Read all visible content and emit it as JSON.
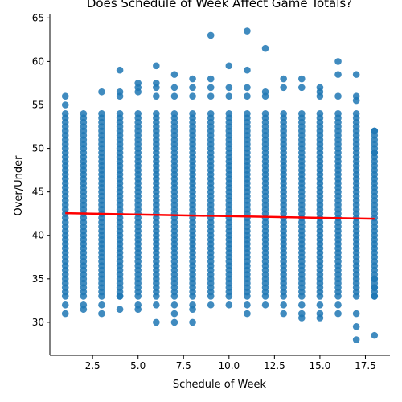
{
  "chart_data": {
    "type": "scatter",
    "title": "Does Schedule of Week Affect Game Totals?",
    "xlabel": "Schedule of Week",
    "ylabel": "Over/Under",
    "xlim": [
      0.15,
      18.85
    ],
    "ylim": [
      26.2,
      65.4
    ],
    "xticks": [
      2.5,
      5.0,
      7.5,
      10.0,
      12.5,
      15.0,
      17.5
    ],
    "xtick_labels": [
      "2.5",
      "5.0",
      "7.5",
      "10.0",
      "12.5",
      "15.0",
      "17.5"
    ],
    "yticks": [
      30,
      35,
      40,
      45,
      50,
      55,
      60,
      65
    ],
    "ytick_labels": [
      "30",
      "35",
      "40",
      "45",
      "50",
      "55",
      "60",
      "65"
    ],
    "grid": false,
    "point_color": "#1f77b4",
    "fit_color": "#ff0000",
    "series": [
      {
        "weeks": [
          1,
          2,
          3,
          4,
          5,
          6,
          7,
          8,
          9,
          10,
          11,
          12,
          13,
          14,
          15,
          16,
          17,
          18
        ],
        "min": [
          30,
          31.5,
          31,
          31.5,
          31.5,
          30,
          30,
          30,
          32,
          32,
          31,
          32,
          31,
          30.5,
          30.5,
          31,
          28,
          28.5
        ],
        "max": [
          56,
          55.5,
          56.5,
          59,
          57.5,
          59.5,
          58.5,
          58,
          63,
          59.5,
          63.5,
          61.5,
          58,
          58,
          57,
          60,
          58.5,
          52
        ],
        "outliers_low": [
          [
            1,
            31
          ],
          [
            1,
            32
          ],
          [
            2,
            31.5
          ],
          [
            2,
            32
          ],
          [
            3,
            31
          ],
          [
            3,
            32
          ],
          [
            4,
            31.5
          ],
          [
            4,
            33
          ],
          [
            5,
            31.5
          ],
          [
            5,
            32
          ],
          [
            6,
            30
          ],
          [
            6,
            32
          ],
          [
            7,
            30
          ],
          [
            7,
            31
          ],
          [
            7,
            32
          ],
          [
            8,
            30
          ],
          [
            8,
            31.5
          ],
          [
            8,
            32
          ],
          [
            9,
            32
          ],
          [
            10,
            32
          ],
          [
            11,
            31
          ],
          [
            11,
            32
          ],
          [
            12,
            32
          ],
          [
            13,
            31
          ],
          [
            13,
            32
          ],
          [
            14,
            30.5
          ],
          [
            14,
            31
          ],
          [
            14,
            32
          ],
          [
            15,
            30.5
          ],
          [
            15,
            31
          ],
          [
            15,
            32
          ],
          [
            16,
            31
          ],
          [
            16,
            32
          ],
          [
            17,
            28
          ],
          [
            17,
            29.5
          ],
          [
            17,
            31
          ],
          [
            18,
            28.5
          ],
          [
            18,
            33
          ],
          [
            18,
            34
          ],
          [
            18,
            35
          ]
        ],
        "outliers_high": [
          [
            1,
            55
          ],
          [
            1,
            56
          ],
          [
            3,
            56.5
          ],
          [
            4,
            56
          ],
          [
            4,
            56.5
          ],
          [
            4,
            59
          ],
          [
            5,
            56.5
          ],
          [
            5,
            57
          ],
          [
            5,
            57.5
          ],
          [
            6,
            56
          ],
          [
            6,
            57
          ],
          [
            6,
            57.5
          ],
          [
            6,
            59.5
          ],
          [
            7,
            56
          ],
          [
            7,
            57
          ],
          [
            7,
            58.5
          ],
          [
            8,
            56
          ],
          [
            8,
            57
          ],
          [
            8,
            58
          ],
          [
            9,
            56
          ],
          [
            9,
            57
          ],
          [
            9,
            58
          ],
          [
            9,
            63
          ],
          [
            10,
            56
          ],
          [
            10,
            57
          ],
          [
            10,
            59.5
          ],
          [
            11,
            56
          ],
          [
            11,
            57
          ],
          [
            11,
            59
          ],
          [
            11,
            63.5
          ],
          [
            12,
            56
          ],
          [
            12,
            56.5
          ],
          [
            12,
            61.5
          ],
          [
            13,
            57
          ],
          [
            13,
            58
          ],
          [
            14,
            57
          ],
          [
            14,
            58
          ],
          [
            15,
            56
          ],
          [
            15,
            56.5
          ],
          [
            15,
            57
          ],
          [
            16,
            56
          ],
          [
            16,
            58.5
          ],
          [
            16,
            60
          ],
          [
            17,
            55.5
          ],
          [
            17,
            56
          ],
          [
            17,
            58.5
          ],
          [
            18,
            52
          ],
          [
            18,
            49.5
          ]
        ]
      }
    ],
    "regression": {
      "x": [
        1,
        18
      ],
      "y": [
        42.55,
        41.9
      ]
    }
  }
}
